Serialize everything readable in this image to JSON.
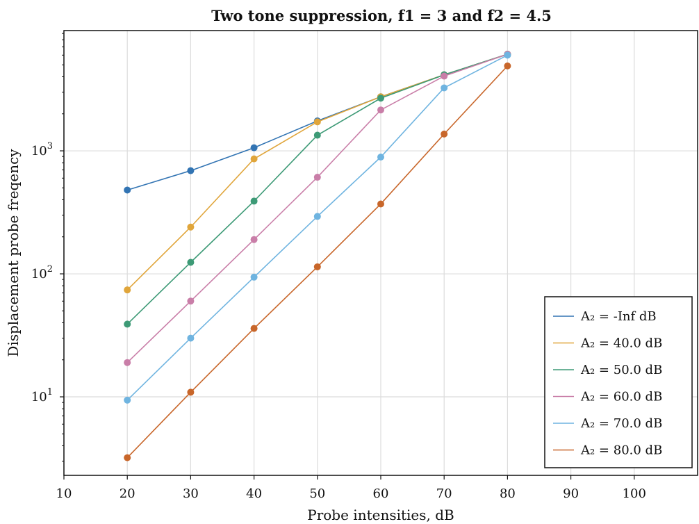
{
  "chart_data": {
    "type": "line",
    "title": "Two tone suppression, f1 = 3 and f2 = 4.5",
    "xlabel": "Probe intensities, dB",
    "ylabel": "Displacement probe freqency",
    "xlim": [
      10,
      110
    ],
    "ylim": [
      2.3,
      9500
    ],
    "yscale": "log",
    "grid": true,
    "legend_position": "bottom-right",
    "x_ticks": [
      10,
      20,
      30,
      40,
      50,
      60,
      70,
      80,
      90,
      100
    ],
    "y_ticks": [
      {
        "value": 10,
        "base": "10",
        "exp": "1"
      },
      {
        "value": 100,
        "base": "10",
        "exp": "2"
      },
      {
        "value": 1000,
        "base": "10",
        "exp": "3"
      }
    ],
    "x": [
      20,
      30,
      40,
      50,
      60,
      70,
      80
    ],
    "series": [
      {
        "name": "A₂ = -Inf dB",
        "color": "#3274b3",
        "values": [
          480,
          690,
          1060,
          1750,
          2750,
          4150,
          6100
        ]
      },
      {
        "name": "A₂ = 40.0 dB",
        "color": "#e0a53a",
        "values": [
          74,
          240,
          860,
          1720,
          2750,
          4150,
          6100
        ]
      },
      {
        "name": "A₂ = 50.0 dB",
        "color": "#3d9a76",
        "values": [
          39,
          124,
          390,
          1340,
          2680,
          4150,
          6100
        ]
      },
      {
        "name": "A₂ = 60.0 dB",
        "color": "#c97ea8",
        "values": [
          19,
          60,
          190,
          610,
          2150,
          4050,
          6100
        ]
      },
      {
        "name": "A₂ = 70.0 dB",
        "color": "#6fb4e0",
        "values": [
          9.4,
          30,
          94,
          293,
          890,
          3250,
          6000
        ]
      },
      {
        "name": "A₂ = 80.0 dB",
        "color": "#c8662a",
        "values": [
          3.2,
          10.9,
          36,
          114,
          370,
          1370,
          4900
        ]
      }
    ]
  }
}
